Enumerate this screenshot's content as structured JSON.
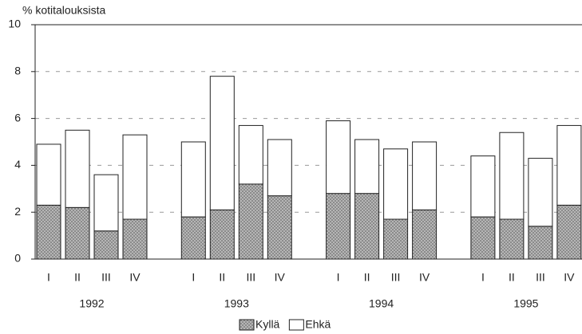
{
  "chart_data": {
    "type": "stacked-bar",
    "y_axis_label": "% kotitalouksista",
    "categories": [
      "I",
      "II",
      "III",
      "IV",
      "I",
      "II",
      "III",
      "IV",
      "I",
      "II",
      "III",
      "IV",
      "I",
      "II",
      "III",
      "IV"
    ],
    "groups": [
      "1992",
      "1993",
      "1994",
      "1995"
    ],
    "series": [
      {
        "name": "Kyllä",
        "color": "#8a8a8a",
        "hatch": true,
        "values": [
          2.3,
          2.2,
          1.2,
          1.7,
          1.8,
          2.1,
          3.2,
          2.7,
          2.8,
          2.8,
          1.7,
          2.1,
          1.8,
          1.7,
          1.4,
          2.3
        ]
      },
      {
        "name": "Ehkä",
        "color": "#ffffff",
        "hatch": false,
        "values": [
          2.6,
          3.3,
          2.4,
          3.6,
          3.2,
          5.7,
          2.5,
          2.4,
          3.1,
          2.3,
          3.0,
          2.9,
          2.6,
          3.7,
          2.9,
          3.4
        ]
      }
    ],
    "ylim": [
      0,
      10
    ],
    "yticks": [
      0,
      2,
      4,
      6,
      8,
      10
    ],
    "grid": true,
    "legend": "bottom"
  }
}
